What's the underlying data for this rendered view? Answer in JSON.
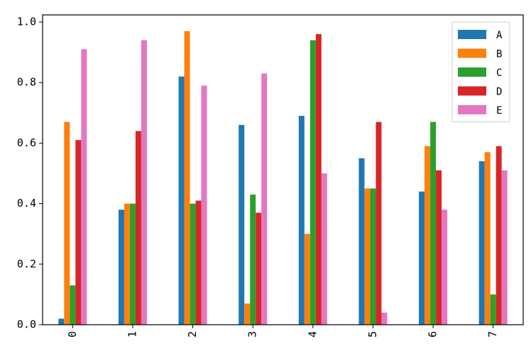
{
  "chart_data": {
    "type": "bar",
    "categories": [
      "0",
      "1",
      "2",
      "3",
      "4",
      "5",
      "6",
      "7"
    ],
    "series": [
      {
        "name": "A",
        "color": "#1f77b4",
        "values": [
          0.02,
          0.38,
          0.82,
          0.66,
          0.69,
          0.55,
          0.44,
          0.54
        ]
      },
      {
        "name": "B",
        "color": "#ff7f0e",
        "values": [
          0.67,
          0.4,
          0.97,
          0.07,
          0.3,
          0.45,
          0.59,
          0.57
        ]
      },
      {
        "name": "C",
        "color": "#2ca02c",
        "values": [
          0.13,
          0.4,
          0.4,
          0.43,
          0.94,
          0.45,
          0.67,
          0.1
        ]
      },
      {
        "name": "D",
        "color": "#d62728",
        "values": [
          0.61,
          0.64,
          0.41,
          0.37,
          0.96,
          0.67,
          0.51,
          0.59
        ]
      },
      {
        "name": "E",
        "color": "#e377c2",
        "values": [
          0.91,
          0.94,
          0.79,
          0.83,
          0.5,
          0.04,
          0.38,
          0.51
        ]
      }
    ],
    "ylim": [
      0,
      1.0
    ],
    "yticks": [
      "0.0",
      "0.2",
      "0.4",
      "0.6",
      "0.8",
      "1.0"
    ],
    "grid": false,
    "legend_position": "top-right",
    "title": "",
    "xlabel": "",
    "ylabel": ""
  }
}
